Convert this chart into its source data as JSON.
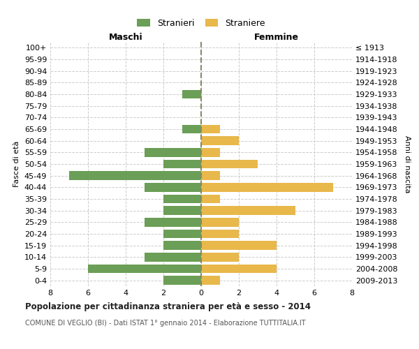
{
  "age_groups": [
    "100+",
    "95-99",
    "90-94",
    "85-89",
    "80-84",
    "75-79",
    "70-74",
    "65-69",
    "60-64",
    "55-59",
    "50-54",
    "45-49",
    "40-44",
    "35-39",
    "30-34",
    "25-29",
    "20-24",
    "15-19",
    "10-14",
    "5-9",
    "0-4"
  ],
  "birth_years": [
    "≤ 1913",
    "1914-1918",
    "1919-1923",
    "1924-1928",
    "1929-1933",
    "1934-1938",
    "1939-1943",
    "1944-1948",
    "1949-1953",
    "1954-1958",
    "1959-1963",
    "1964-1968",
    "1969-1973",
    "1974-1978",
    "1979-1983",
    "1984-1988",
    "1989-1993",
    "1994-1998",
    "1999-2003",
    "2004-2008",
    "2009-2013"
  ],
  "maschi": [
    0,
    0,
    0,
    0,
    1,
    0,
    0,
    1,
    0,
    3,
    2,
    7,
    3,
    2,
    2,
    3,
    2,
    2,
    3,
    6,
    2
  ],
  "femmine": [
    0,
    0,
    0,
    0,
    0,
    0,
    0,
    1,
    2,
    1,
    3,
    1,
    7,
    1,
    5,
    2,
    2,
    4,
    2,
    4,
    1
  ],
  "male_color": "#6b9e56",
  "female_color": "#e8b84b",
  "title": "Popolazione per cittadinanza straniera per età e sesso - 2014",
  "subtitle": "COMUNE DI VEGLIO (BI) - Dati ISTAT 1° gennaio 2014 - Elaborazione TUTTITALIA.IT",
  "legend_male": "Stranieri",
  "legend_female": "Straniere",
  "label_maschi": "Maschi",
  "label_femmine": "Femmine",
  "ylabel_left": "Fasce di età",
  "ylabel_right": "Anni di nascita",
  "xlim": 8,
  "background_color": "#ffffff",
  "grid_color": "#cccccc"
}
